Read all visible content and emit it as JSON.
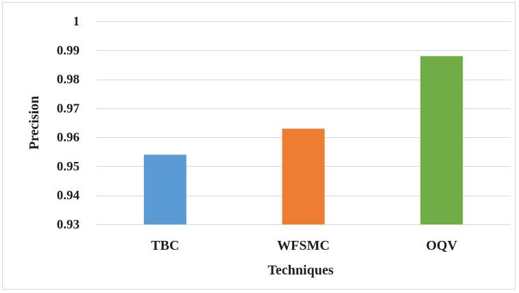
{
  "chart_data": {
    "type": "bar",
    "categories": [
      "TBC",
      "WFSMC",
      "OQV"
    ],
    "values": [
      0.954,
      0.963,
      0.988
    ],
    "colors": [
      "#5b9bd5",
      "#ed7d31",
      "#70ad47"
    ],
    "title": "",
    "xlabel": "Techniques",
    "ylabel": "Precision",
    "ylim": [
      0.93,
      1
    ],
    "yticks": [
      0.93,
      0.94,
      0.95,
      0.96,
      0.97,
      0.98,
      0.99,
      1
    ],
    "ytick_labels": [
      "0.93",
      "0.94",
      "0.95",
      "0.96",
      "0.97",
      "0.98",
      "0.99",
      "1"
    ],
    "grid": true,
    "legend": "none",
    "gridline_color": "#d9d9d9"
  }
}
